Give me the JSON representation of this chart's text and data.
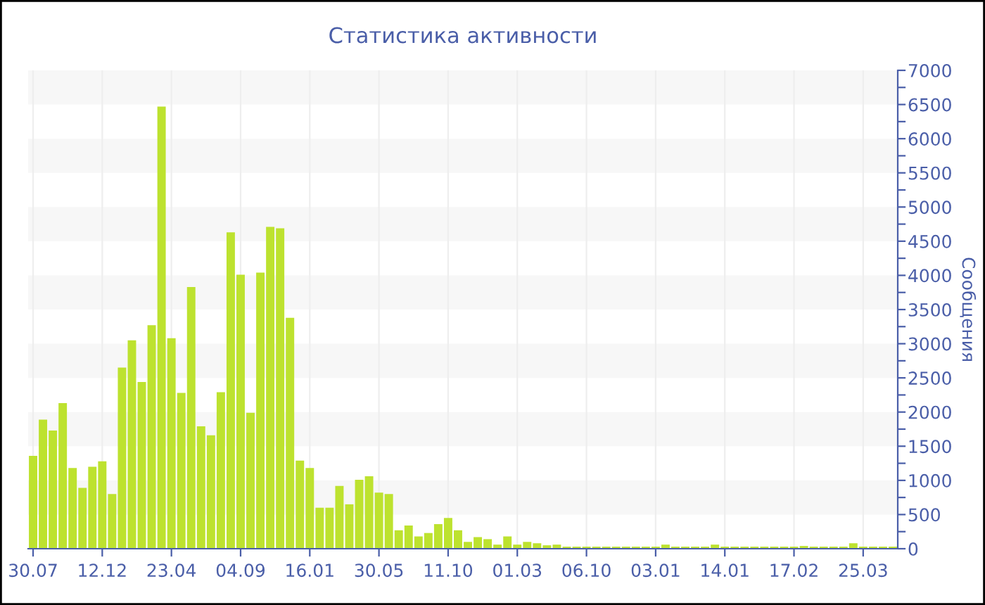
{
  "chart_data": {
    "type": "bar",
    "title": "Статистика активности",
    "ylabel": "Сообщения",
    "categories": [
      "30.07",
      null,
      null,
      null,
      null,
      null,
      null,
      "12.12",
      null,
      null,
      null,
      null,
      null,
      null,
      "23.04",
      null,
      null,
      null,
      null,
      null,
      null,
      "04.09",
      null,
      null,
      null,
      null,
      null,
      null,
      "16.01",
      null,
      null,
      null,
      null,
      null,
      null,
      "30.05",
      null,
      null,
      null,
      null,
      null,
      null,
      "11.10",
      null,
      null,
      null,
      null,
      null,
      null,
      "01.03",
      null,
      null,
      null,
      null,
      null,
      null,
      "06.10",
      null,
      null,
      null,
      null,
      null,
      null,
      "03.01",
      null,
      null,
      null,
      null,
      null,
      null,
      "14.01",
      null,
      null,
      null,
      null,
      null,
      null,
      "17.02",
      null,
      null,
      null,
      null,
      null,
      null,
      "25.03",
      null,
      null,
      null
    ],
    "values": [
      1360,
      1890,
      1730,
      2130,
      1180,
      890,
      1200,
      1280,
      800,
      2650,
      3050,
      2440,
      3270,
      6470,
      3080,
      2280,
      3830,
      1790,
      1660,
      2290,
      4630,
      4010,
      1990,
      4040,
      4710,
      4690,
      3380,
      1290,
      1180,
      600,
      600,
      920,
      650,
      1010,
      1060,
      820,
      800,
      270,
      340,
      180,
      230,
      360,
      450,
      270,
      100,
      170,
      140,
      60,
      180,
      60,
      100,
      80,
      50,
      60,
      30,
      30,
      30,
      30,
      30,
      30,
      30,
      30,
      30,
      30,
      60,
      30,
      30,
      30,
      30,
      60,
      30,
      30,
      30,
      30,
      30,
      30,
      30,
      30,
      40,
      30,
      30,
      30,
      30,
      80,
      30,
      30,
      30,
      30
    ],
    "color": "#bde22f",
    "ylim": [
      0,
      7000
    ],
    "yticks": [
      0,
      {
        "value": 250,
        "label": null
      },
      500,
      {
        "value": 750,
        "label": null
      },
      1000,
      {
        "value": 1250,
        "label": null
      },
      1500,
      {
        "value": 1750,
        "label": null
      },
      2000,
      {
        "value": 2250,
        "label": null
      },
      2500,
      {
        "value": 2750,
        "label": null
      },
      3000,
      {
        "value": 3250,
        "label": null
      },
      3500,
      {
        "value": 3750,
        "label": null
      },
      4000,
      {
        "value": 4250,
        "label": null
      },
      4500,
      {
        "value": 4750,
        "label": null
      },
      5000,
      {
        "value": 5250,
        "label": null
      },
      5500,
      {
        "value": 5750,
        "label": null
      },
      6000,
      {
        "value": 6250,
        "label": null
      },
      6500,
      {
        "value": 6750,
        "label": null
      },
      7000
    ],
    "bands": [
      {
        "axis": "y",
        "from": 500,
        "to": 1000,
        "color": "#f7f7f7"
      },
      {
        "axis": "y",
        "from": 1500,
        "to": 2000,
        "color": "#f7f7f7"
      },
      {
        "axis": "y",
        "from": 2500,
        "to": 3000,
        "color": "#f7f7f7"
      },
      {
        "axis": "y",
        "from": 3500,
        "to": 4000,
        "color": "#f7f7f7"
      },
      {
        "axis": "y",
        "from": 4500,
        "to": 5000,
        "color": "#f7f7f7"
      },
      {
        "axis": "y",
        "from": 5500,
        "to": 6000,
        "color": "#f7f7f7"
      },
      {
        "axis": "y",
        "from": 6500,
        "to": 7000,
        "color": "#f7f7f7"
      }
    ],
    "grid": "x",
    "legend": false
  }
}
